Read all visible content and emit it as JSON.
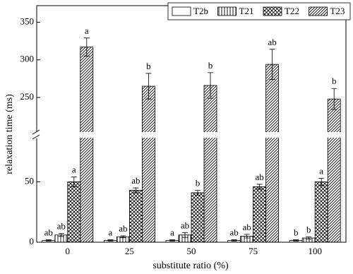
{
  "chart_data": {
    "type": "bar",
    "x_label": "substitute ratio (%)",
    "y_label": "relaxation time (ms)",
    "categories": [
      "0",
      "25",
      "50",
      "75",
      "100"
    ],
    "ylim": [
      0,
      372
    ],
    "axis_break": [
      86,
      205
    ],
    "yticks": [
      0,
      50,
      250,
      300,
      350
    ],
    "legend": "top-right",
    "series": [
      {
        "name": "T2b",
        "color": "#000000",
        "pattern": "none",
        "values": [
          1.5,
          1.5,
          1.5,
          1.5,
          1.5
        ],
        "errors": [
          0.5,
          0.5,
          0.5,
          0.5,
          0.5
        ],
        "letters": [
          "ab",
          "a",
          "a",
          "ab",
          "b"
        ]
      },
      {
        "name": "T21",
        "color": "#000000",
        "pattern": "vertical",
        "values": [
          6,
          4.5,
          6,
          5,
          3.5
        ],
        "errors": [
          1.2,
          0.8,
          2,
          1.5,
          1
        ],
        "letters": [
          "ab",
          "ab",
          "ab",
          "ab",
          "b"
        ]
      },
      {
        "name": "T22",
        "color": "#000000",
        "pattern": "cross",
        "values": [
          50,
          43,
          41,
          46,
          50
        ],
        "errors": [
          4,
          2,
          2,
          2,
          3
        ],
        "letters": [
          "a",
          "ab",
          "b",
          "ab",
          "a"
        ]
      },
      {
        "name": "T23",
        "color": "#000000",
        "pattern": "diagonal",
        "values": [
          317,
          265,
          266,
          294,
          248
        ],
        "errors": [
          12,
          17,
          17,
          20,
          14
        ],
        "letters": [
          "a",
          "b",
          "b",
          "ab",
          "b"
        ]
      }
    ]
  }
}
